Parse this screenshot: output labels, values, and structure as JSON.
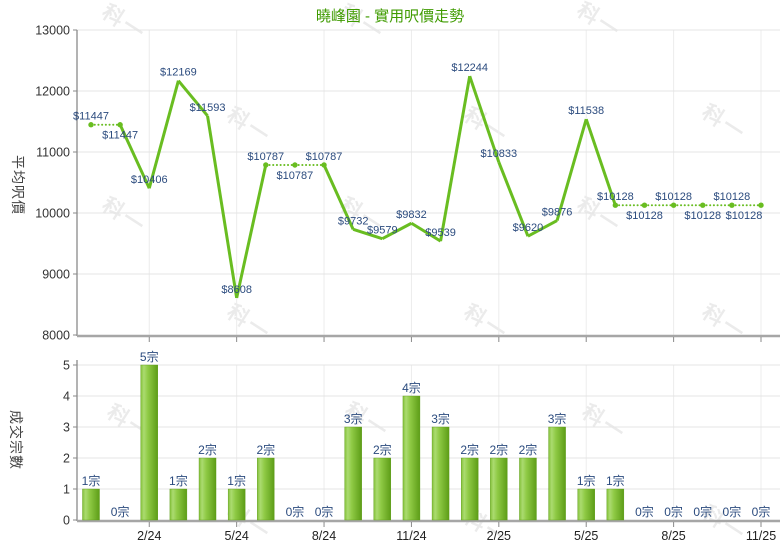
{
  "title": "曉峰園 - 實用呎價走勢",
  "watermark": "科一",
  "colors": {
    "title": "#3f9b00",
    "line": "#69bd21",
    "bar_gradient": [
      "#84c13a",
      "#abdb70",
      "#8fca45",
      "#5d9d17"
    ],
    "value_label": "#2b4b7e",
    "axis_text": "#333333",
    "x_tick_label": "#222222",
    "grid": "#e4e4e4",
    "axis_line": "#a6a6a6",
    "tick_mark": "#8a8a8a",
    "watermark": "#ebebeb"
  },
  "chart_data": [
    {
      "type": "line",
      "title": "曉峰園 - 實用呎價走勢",
      "ylabel": "平均呎價",
      "ylim": [
        8000,
        13000
      ],
      "y_ticks": [
        8000,
        9000,
        10000,
        11000,
        12000,
        13000
      ],
      "x_tick_labels": [
        "2/24",
        "5/24",
        "8/24",
        "11/24",
        "2/25",
        "5/25",
        "8/25",
        "11/25"
      ],
      "x_tick_indices": [
        2,
        5,
        8,
        11,
        14,
        17,
        20,
        23
      ],
      "label_prefix": "$",
      "values": [
        11447,
        11447,
        10406,
        12169,
        11593,
        8608,
        10787,
        10787,
        10787,
        9732,
        9579,
        9832,
        9539,
        12244,
        10833,
        9620,
        9876,
        11538,
        10128,
        10128,
        10128,
        10128,
        10128,
        10128
      ],
      "label_positions": [
        "above",
        "below",
        "above",
        "above",
        "above",
        "above",
        "above",
        "below",
        "above",
        "above",
        "above",
        "above",
        "above",
        "above",
        "above",
        "above",
        "above",
        "above",
        "above",
        "below",
        "above",
        "below",
        "above",
        "below"
      ],
      "note": "segments where the month transaction count is 0 are drawn dotted"
    },
    {
      "type": "bar",
      "ylabel": "成交宗數",
      "ylim": [
        0,
        5
      ],
      "y_ticks": [
        0,
        1,
        2,
        3,
        4,
        5
      ],
      "x_tick_labels": [
        "2/24",
        "5/24",
        "8/24",
        "11/24",
        "2/25",
        "5/25",
        "8/25",
        "11/25"
      ],
      "x_tick_indices": [
        2,
        5,
        8,
        11,
        14,
        17,
        20,
        23
      ],
      "values": [
        1,
        0,
        5,
        1,
        2,
        1,
        2,
        0,
        0,
        3,
        2,
        4,
        3,
        2,
        2,
        2,
        3,
        1,
        1,
        0,
        0,
        0,
        0,
        0
      ],
      "bar_labels": [
        "1宗",
        "0宗",
        "5宗",
        "1宗",
        "2宗",
        "1宗",
        "2宗",
        "0宗",
        "0宗",
        "3宗",
        "2宗",
        "4宗",
        "3宗",
        "2宗",
        "2宗",
        "2宗",
        "3宗",
        "1宗",
        "1宗",
        "0宗",
        "0宗",
        "0宗",
        "0宗",
        "0宗"
      ]
    }
  ]
}
